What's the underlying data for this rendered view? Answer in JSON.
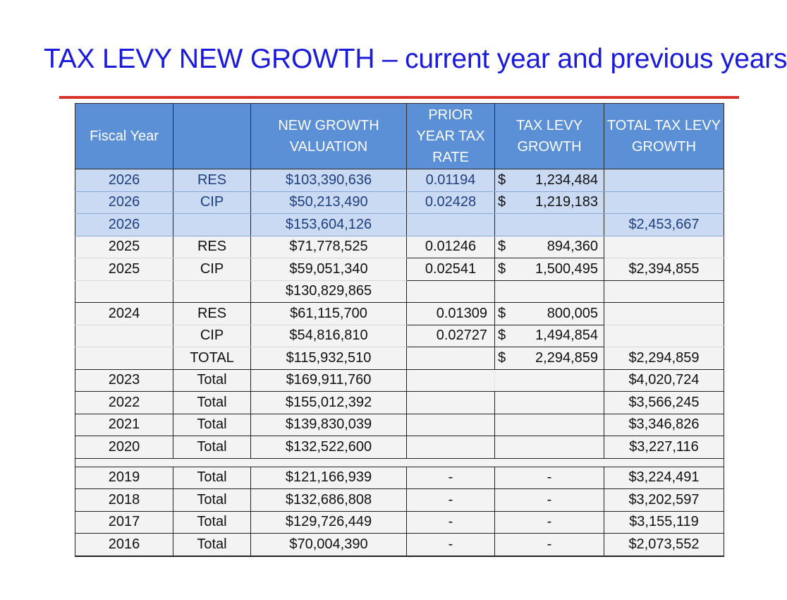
{
  "title": "TAX LEVY NEW GROWTH – current year and previous years",
  "headers": {
    "fiscal_year": "Fiscal Year",
    "type": "",
    "valuation_l1": "NEW GROWTH",
    "valuation_l2": "VALUATION",
    "rate_l1": "PRIOR",
    "rate_l2": "YEAR TAX",
    "rate_l3": "RATE",
    "levy_l1": "TAX LEVY",
    "levy_l2": "GROWTH",
    "total_l1": "TOTAL TAX LEVY",
    "total_l2": "GROWTH"
  },
  "rows": [
    {
      "year": "2026",
      "type": "RES",
      "valuation": "$103,390,636",
      "rate": "0.01194",
      "levy_sign": "$",
      "levy": "1,234,484",
      "total": ""
    },
    {
      "year": "2026",
      "type": "CIP",
      "valuation": "$50,213,490",
      "rate": "0.02428",
      "levy_sign": "$",
      "levy": "1,219,183",
      "total": ""
    },
    {
      "year": "2026",
      "type": "",
      "valuation": "$153,604,126",
      "rate": "",
      "levy_sign": "",
      "levy": "",
      "total": "$2,453,667"
    },
    {
      "year": "2025",
      "type": "RES",
      "valuation": "$71,778,525",
      "rate": "0.01246",
      "levy_sign": "$",
      "levy": "894,360",
      "total": ""
    },
    {
      "year": "2025",
      "type": "CIP",
      "valuation": "$59,051,340",
      "rate": "0.02541",
      "levy_sign": "$",
      "levy": "1,500,495",
      "total": "$2,394,855"
    },
    {
      "year": "",
      "type": "",
      "valuation": "$130,829,865",
      "rate": "",
      "levy_sign": "",
      "levy": "",
      "total": ""
    },
    {
      "year": "2024",
      "type": "RES",
      "valuation": "$61,115,700",
      "rate": "0.01309",
      "levy_sign": "$",
      "levy": "800,005",
      "total": ""
    },
    {
      "year": "",
      "type": "CIP",
      "valuation": "$54,816,810",
      "rate": "0.02727",
      "levy_sign": "$",
      "levy": "1,494,854",
      "total": ""
    },
    {
      "year": "",
      "type": "TOTAL",
      "valuation": "$115,932,510",
      "rate": "",
      "levy_sign": "$",
      "levy": "2,294,859",
      "total": "$2,294,859"
    },
    {
      "year": "2023",
      "type": "Total",
      "valuation": "$169,911,760",
      "rate": "",
      "levy_sign": "",
      "levy": "",
      "total": "$4,020,724"
    },
    {
      "year": "2022",
      "type": "Total",
      "valuation": "$155,012,392",
      "rate": "",
      "levy_sign": "",
      "levy": "",
      "total": "$3,566,245"
    },
    {
      "year": "2021",
      "type": "Total",
      "valuation": "$139,830,039",
      "rate": "",
      "levy_sign": "",
      "levy": "",
      "total": "$3,346,826"
    },
    {
      "year": "2020",
      "type": "Total",
      "valuation": "$132,522,600",
      "rate": "",
      "levy_sign": "",
      "levy": "",
      "total": "$3,227,116"
    },
    {
      "year": "2019",
      "type": "Total",
      "valuation": "$121,166,939",
      "rate": "-",
      "levy_sign": "",
      "levy": "-",
      "total": "$3,224,491"
    },
    {
      "year": "2018",
      "type": "Total",
      "valuation": "$132,686,808",
      "rate": "-",
      "levy_sign": "",
      "levy": "-",
      "total": "$3,202,597"
    },
    {
      "year": "2017",
      "type": "Total",
      "valuation": "$129,726,449",
      "rate": "-",
      "levy_sign": "",
      "levy": "-",
      "total": "$3,155,119"
    },
    {
      "year": "2016",
      "type": "Total",
      "valuation": "$70,004,390",
      "rate": "-",
      "levy_sign": "",
      "levy": "-",
      "total": "$2,073,552"
    }
  ]
}
